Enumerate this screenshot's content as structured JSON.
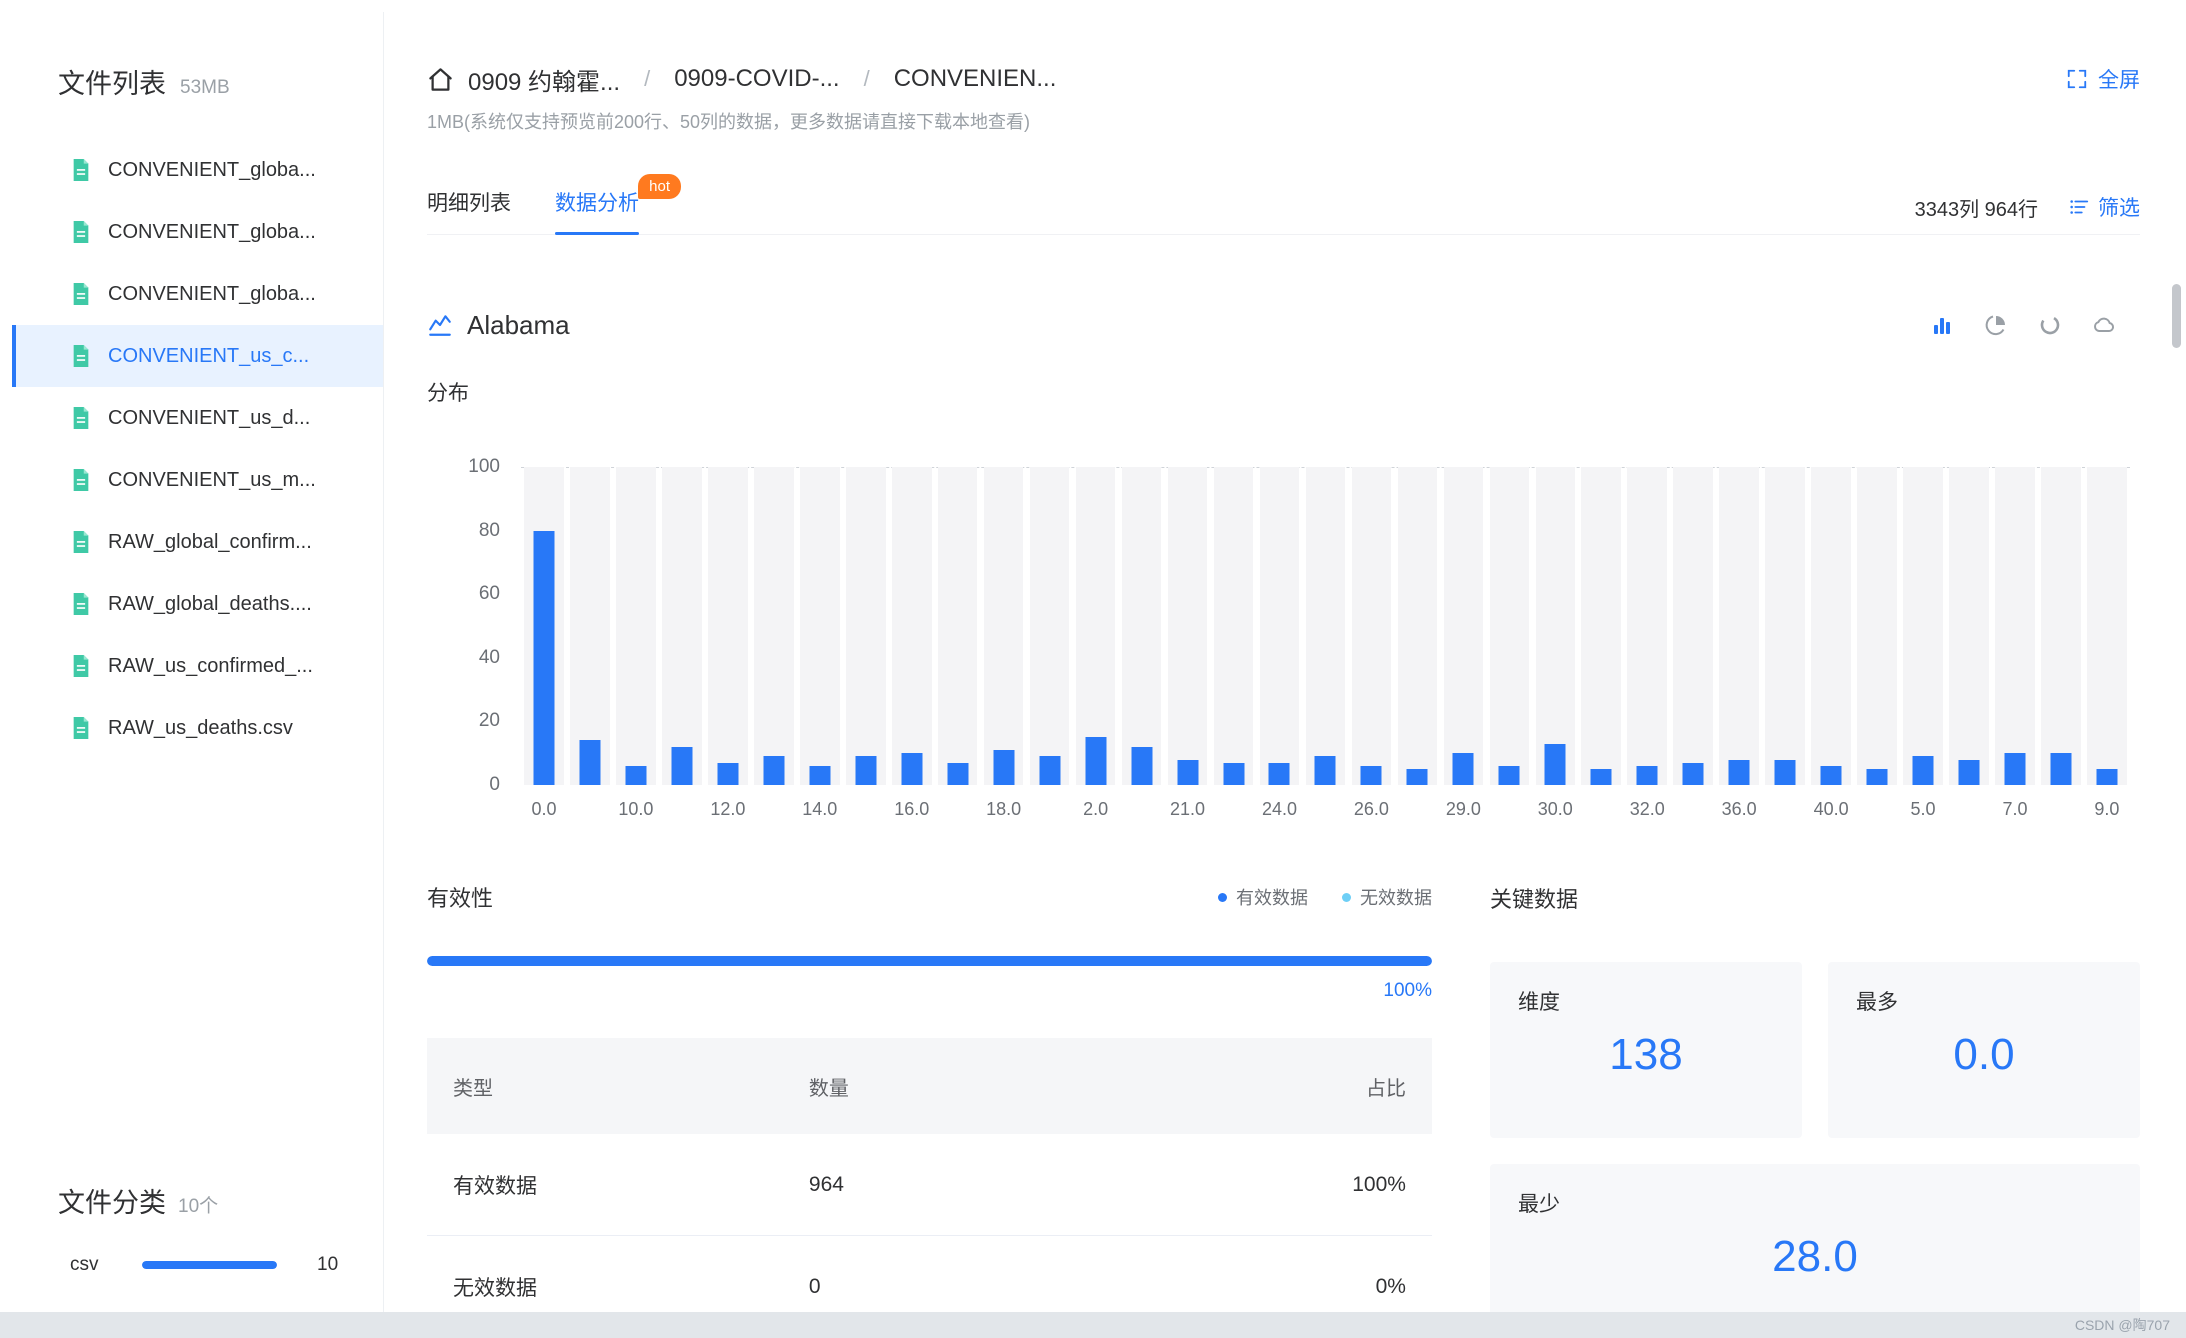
{
  "colors": {
    "accent": "#2878f7",
    "valid": "#2878f7",
    "invalid": "#6ecff6",
    "hot_badge": "#ff7a1f",
    "file_icon": "#3fc9a6"
  },
  "sidebar": {
    "title": "文件列表",
    "size": "53MB",
    "files": [
      {
        "name": "CONVENIENT_globa...",
        "selected": false
      },
      {
        "name": "CONVENIENT_globa...",
        "selected": false
      },
      {
        "name": "CONVENIENT_globa...",
        "selected": false
      },
      {
        "name": "CONVENIENT_us_c...",
        "selected": true
      },
      {
        "name": "CONVENIENT_us_d...",
        "selected": false
      },
      {
        "name": "CONVENIENT_us_m...",
        "selected": false
      },
      {
        "name": "RAW_global_confirm...",
        "selected": false
      },
      {
        "name": "RAW_global_deaths....",
        "selected": false
      },
      {
        "name": "RAW_us_confirmed_...",
        "selected": false
      },
      {
        "name": "RAW_us_deaths.csv",
        "selected": false
      }
    ],
    "category_title": "文件分类",
    "category_count": "10个",
    "categories": [
      {
        "label": "csv",
        "count": "10",
        "percent": 100
      }
    ]
  },
  "header": {
    "breadcrumb": [
      "0909 约翰霍...",
      "0909-COVID-...",
      "CONVENIEN..."
    ],
    "separator": "/",
    "fullscreen_label": "全屏",
    "subtitle": "1MB(系统仅支持预览前200行、50列的数据，更多数据请直接下载本地查看)"
  },
  "tabs": {
    "items": [
      {
        "label": "明细列表",
        "active": false,
        "badge": ""
      },
      {
        "label": "数据分析",
        "active": true,
        "badge": "hot"
      }
    ],
    "meta": "3343列 964行",
    "filter_label": "筛选"
  },
  "chart": {
    "section_label": "分布"
  },
  "chart_data": {
    "type": "bar",
    "title": "Alabama",
    "xlabel": "",
    "ylabel": "",
    "ylim": [
      0,
      100
    ],
    "yticks": [
      100,
      80,
      60,
      40,
      20,
      0
    ],
    "grid": "dashed line at y=100, gray background columns behind bars",
    "legend_position": "none",
    "x_tick_labels": [
      "0.0",
      "10.0",
      "12.0",
      "14.0",
      "16.0",
      "18.0",
      "2.0",
      "21.0",
      "24.0",
      "26.0",
      "29.0",
      "30.0",
      "32.0",
      "36.0",
      "40.0",
      "5.0",
      "7.0",
      "9.0"
    ],
    "tick_label_rule": "one label under every other bar starting with the first",
    "values": [
      80,
      14,
      6,
      12,
      7,
      9,
      6,
      9,
      10,
      7,
      11,
      9,
      15,
      12,
      8,
      7,
      7,
      9,
      6,
      5,
      10,
      6,
      13,
      5,
      6,
      7,
      8,
      8,
      6,
      5,
      9,
      8,
      10,
      10,
      5
    ]
  },
  "validity": {
    "title": "有效性",
    "legend": [
      {
        "label": "有效数据",
        "color": "#2878f7"
      },
      {
        "label": "无效数据",
        "color": "#6ecff6"
      }
    ],
    "percent_label": "100%",
    "progress_percent": 100,
    "table": {
      "headers": [
        "类型",
        "数量",
        "占比"
      ],
      "rows": [
        [
          "有效数据",
          "964",
          "100%"
        ],
        [
          "无效数据",
          "0",
          "0%"
        ]
      ]
    }
  },
  "key_data": {
    "title": "关键数据",
    "cards": [
      {
        "label": "维度",
        "value": "138"
      },
      {
        "label": "最多",
        "value": "0.0"
      },
      {
        "label": "最少",
        "value": "28.0"
      }
    ]
  },
  "watermark": "CSDN @陶707"
}
